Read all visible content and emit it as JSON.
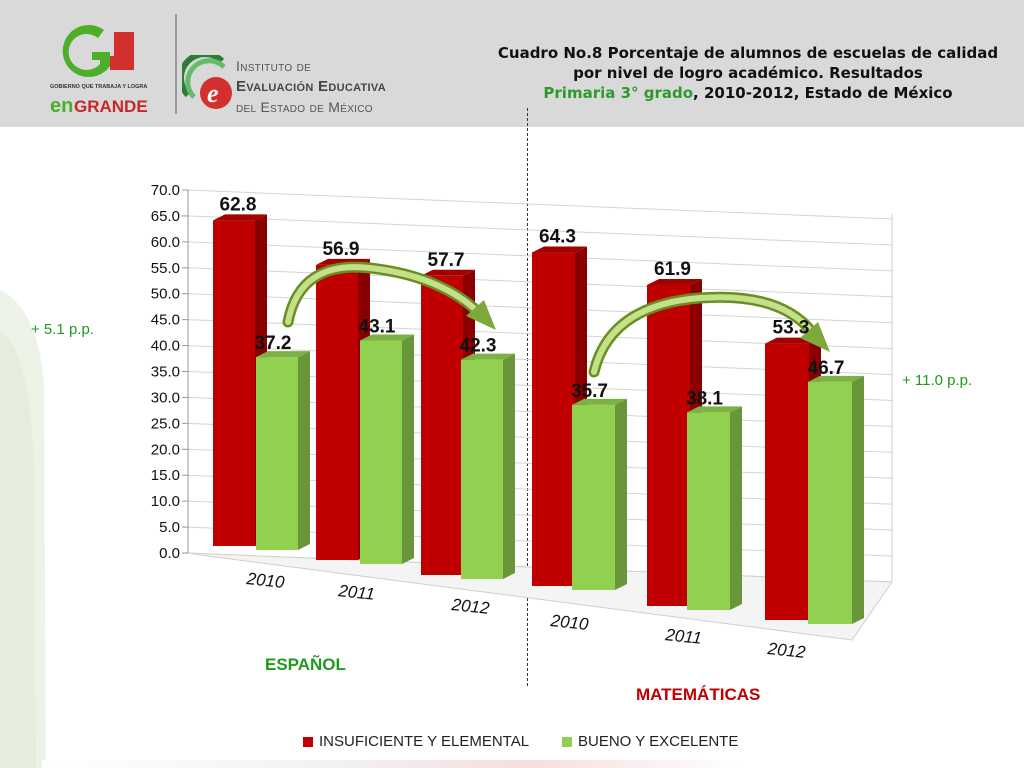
{
  "header": {
    "title_prefix": "Cuadro No.8 Porcentaje de alumnos de escuelas de calidad por nivel de logro académico. Resultados",
    "title_highlight": "Primaria 3° grado",
    "title_suffix": ", 2010-2012, Estado de México"
  },
  "logos": {
    "gobierno": "GOBIERNO QUE TRABAJA Y LOGRA enGRANDE",
    "instituto_line1": "Instituto de",
    "instituto_line2": "Evaluación Educativa",
    "instituto_line3": "del Estado de México"
  },
  "annotations": {
    "espanol_change": "+ 5.1 p.p.",
    "matematicas_change": "+ 11.0 p.p."
  },
  "groups": {
    "espanol": "ESPAÑOL",
    "matematicas": "MATEMÁTICAS"
  },
  "colors": {
    "red": "#c00000",
    "green": "#92d050",
    "header_bg": "#d9d9d9",
    "highlight_text": "#2e9a2e"
  },
  "chart_data": {
    "type": "bar",
    "categories": [
      "2010",
      "2011",
      "2012",
      "2010",
      "2011",
      "2012"
    ],
    "series": [
      {
        "name": "INSUFICIENTE Y ELEMENTAL",
        "values": [
          62.8,
          56.9,
          57.7,
          64.3,
          61.9,
          53.3
        ]
      },
      {
        "name": "BUENO Y EXCELENTE",
        "values": [
          37.2,
          43.1,
          42.3,
          35.7,
          38.1,
          46.7
        ]
      }
    ],
    "ylim": [
      0,
      70
    ],
    "ytick_step": 5,
    "ytick_labels": [
      "0.0",
      "5.0",
      "10.0",
      "15.0",
      "20.0",
      "25.0",
      "30.0",
      "35.0",
      "40.0",
      "45.0",
      "50.0",
      "55.0",
      "60.0",
      "65.0",
      "70.0"
    ],
    "grid": true,
    "legend_position": "bottom",
    "three_d": true
  }
}
